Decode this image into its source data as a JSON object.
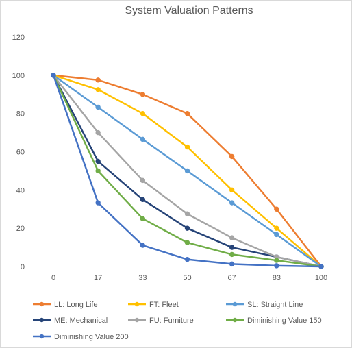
{
  "chart_data": {
    "type": "line",
    "title": "System Valuation Patterns",
    "categories": [
      "0",
      "17",
      "33",
      "50",
      "67",
      "83",
      "100"
    ],
    "ylim": [
      0,
      120
    ],
    "yticks": [
      0,
      20,
      40,
      60,
      80,
      100,
      120
    ],
    "grid": false,
    "legend": "bottom",
    "series": [
      {
        "name": "LL: Long Life",
        "color": "#ED7D31",
        "values": [
          100,
          97.5,
          90,
          80,
          57.5,
          30,
          0
        ]
      },
      {
        "name": "FT: Fleet",
        "color": "#FFC000",
        "values": [
          100,
          92.5,
          80,
          62.5,
          40,
          20,
          0
        ]
      },
      {
        "name": "SL: Straight Line",
        "color": "#5B9BD5",
        "values": [
          100,
          83.3,
          66.5,
          50,
          33.3,
          16.7,
          0
        ]
      },
      {
        "name": "ME: Mechanical",
        "color": "#264478",
        "values": [
          100,
          55,
          35,
          20,
          10,
          5,
          0
        ]
      },
      {
        "name": "FU: Furniture",
        "color": "#A5A5A5",
        "values": [
          100,
          70,
          45,
          27.5,
          15,
          5,
          0
        ]
      },
      {
        "name": "Diminishing Value 150",
        "color": "#70AD47",
        "values": [
          100,
          50,
          25,
          12.5,
          6.3,
          3.2,
          0
        ]
      },
      {
        "name": "Diminishing Value 200",
        "color": "#4472C4",
        "values": [
          100,
          33.3,
          11.1,
          3.7,
          1.3,
          0.4,
          0
        ]
      }
    ]
  }
}
